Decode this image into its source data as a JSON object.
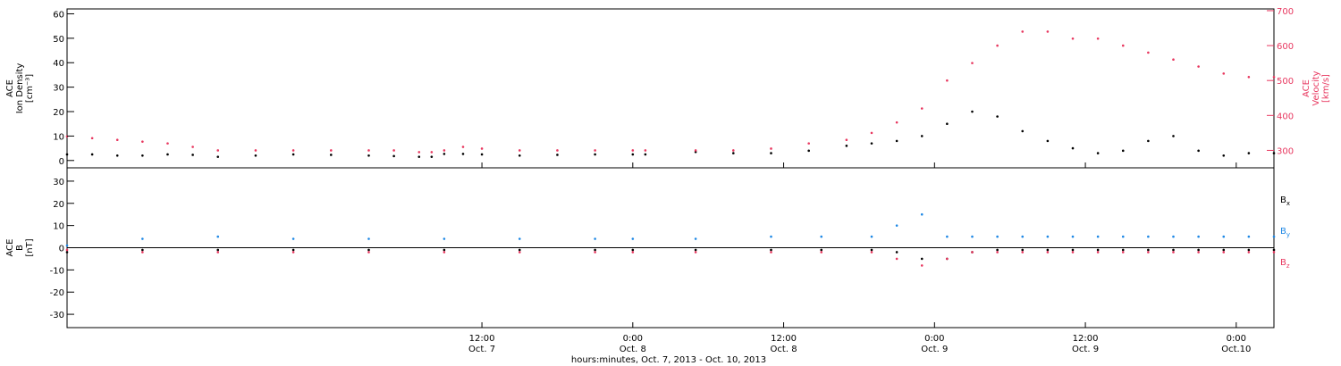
{
  "chart_data": {
    "type": "scatter",
    "x_axis": {
      "label": "hours:minutes, Oct.  7, 2013 - Oct. 10, 2013",
      "range_hours": [
        0,
        96
      ],
      "ticks": [
        {
          "hour": 33,
          "time": "12:00",
          "day": "Oct. 7"
        },
        {
          "hour": 45,
          "time": "0:00",
          "day": "Oct. 8"
        },
        {
          "hour": 57,
          "time": "12:00",
          "day": "Oct. 8"
        },
        {
          "hour": 69,
          "time": "0:00",
          "day": "Oct. 9"
        },
        {
          "hour": 81,
          "time": "12:00",
          "day": "Oct. 9"
        },
        {
          "hour": 93,
          "time": "0:00",
          "day": "Oct.10"
        }
      ]
    },
    "panels": [
      {
        "id": "density-velocity",
        "left_axis": {
          "label_lines": [
            "ACE",
            "Ion Density",
            "[cm⁻³]"
          ],
          "range": [
            -3,
            62
          ],
          "ticks": [
            0,
            10,
            20,
            30,
            40,
            50,
            60
          ],
          "color": "#000000"
        },
        "right_axis": {
          "label_lines": [
            "ACE",
            "Velocity",
            "[km/s]"
          ],
          "range": [
            250,
            705
          ],
          "ticks": [
            300,
            400,
            500,
            600,
            700
          ],
          "color": "#e8375f"
        },
        "series": [
          {
            "name": "Ion Density",
            "axis": "left",
            "color": "#000000",
            "points": [
              [
                0,
                2.5
              ],
              [
                2,
                2.5
              ],
              [
                4,
                2.0
              ],
              [
                6,
                2.0
              ],
              [
                8,
                2.5
              ],
              [
                10,
                2.3
              ],
              [
                12,
                1.5
              ],
              [
                15,
                2.0
              ],
              [
                18,
                2.5
              ],
              [
                21,
                2.3
              ],
              [
                24,
                2.0
              ],
              [
                26,
                1.8
              ],
              [
                28,
                1.5
              ],
              [
                29,
                1.5
              ],
              [
                30,
                2.7
              ],
              [
                31.5,
                2.7
              ],
              [
                33,
                2.5
              ],
              [
                36,
                2.0
              ],
              [
                39,
                2.3
              ],
              [
                42,
                2.5
              ],
              [
                45,
                2.5
              ],
              [
                46,
                2.5
              ],
              [
                50,
                3.5
              ],
              [
                53,
                3.0
              ],
              [
                56,
                3.0
              ],
              [
                59,
                4.0
              ],
              [
                62,
                6.0
              ],
              [
                64,
                7.0
              ],
              [
                66,
                8.0
              ],
              [
                68,
                10.0
              ],
              [
                70,
                15.0
              ],
              [
                72,
                20.0
              ],
              [
                74,
                18.0
              ],
              [
                76,
                12.0
              ],
              [
                78,
                8.0
              ],
              [
                80,
                5.0
              ],
              [
                82,
                3.0
              ],
              [
                84,
                4.0
              ],
              [
                86,
                8.0
              ],
              [
                88,
                10.0
              ],
              [
                90,
                4.0
              ],
              [
                92,
                2.0
              ],
              [
                94,
                3.0
              ],
              [
                96,
                3.0
              ]
            ]
          },
          {
            "name": "Velocity",
            "axis": "right",
            "color": "#e8375f",
            "points": [
              [
                0,
                340
              ],
              [
                2,
                335
              ],
              [
                4,
                330
              ],
              [
                6,
                325
              ],
              [
                8,
                320
              ],
              [
                10,
                310
              ],
              [
                12,
                300
              ],
              [
                15,
                300
              ],
              [
                18,
                300
              ],
              [
                21,
                300
              ],
              [
                24,
                300
              ],
              [
                26,
                300
              ],
              [
                28,
                295
              ],
              [
                29,
                295
              ],
              [
                30,
                300
              ],
              [
                31.5,
                310
              ],
              [
                33,
                305
              ],
              [
                36,
                300
              ],
              [
                39,
                300
              ],
              [
                42,
                300
              ],
              [
                45,
                300
              ],
              [
                46,
                300
              ],
              [
                50,
                300
              ],
              [
                53,
                300
              ],
              [
                56,
                305
              ],
              [
                59,
                320
              ],
              [
                62,
                330
              ],
              [
                64,
                350
              ],
              [
                66,
                380
              ],
              [
                68,
                420
              ],
              [
                70,
                500
              ],
              [
                72,
                550
              ],
              [
                74,
                600
              ],
              [
                76,
                640
              ],
              [
                78,
                640
              ],
              [
                80,
                620
              ],
              [
                82,
                620
              ],
              [
                84,
                600
              ],
              [
                86,
                580
              ],
              [
                88,
                560
              ],
              [
                90,
                540
              ],
              [
                92,
                520
              ],
              [
                94,
                510
              ],
              [
                96,
                510
              ]
            ]
          }
        ]
      },
      {
        "id": "magnetic-field",
        "left_axis": {
          "label_lines": [
            "ACE",
            "B",
            "[nT]"
          ],
          "range": [
            -36,
            36
          ],
          "ticks": [
            -30,
            -20,
            -10,
            0,
            10,
            20,
            30
          ],
          "color": "#000000"
        },
        "legend_placement": "right",
        "series": [
          {
            "name": "B",
            "sub": "x",
            "color": "#000000",
            "points": [
              [
                0,
                -2
              ],
              [
                6,
                -1
              ],
              [
                12,
                -1
              ],
              [
                18,
                -1
              ],
              [
                24,
                -1
              ],
              [
                30,
                -1
              ],
              [
                36,
                -1
              ],
              [
                42,
                -1
              ],
              [
                45,
                -1
              ],
              [
                50,
                -1
              ],
              [
                56,
                -1
              ],
              [
                60,
                -1
              ],
              [
                64,
                -1
              ],
              [
                66,
                -2
              ],
              [
                68,
                -5
              ],
              [
                70,
                -5
              ],
              [
                72,
                -2
              ],
              [
                74,
                -1
              ],
              [
                76,
                -1
              ],
              [
                78,
                -1
              ],
              [
                80,
                -1
              ],
              [
                82,
                -1
              ],
              [
                84,
                -1
              ],
              [
                86,
                -1
              ],
              [
                88,
                -1
              ],
              [
                90,
                -1
              ],
              [
                92,
                -1
              ],
              [
                94,
                -1
              ],
              [
                96,
                -1
              ]
            ]
          },
          {
            "name": "B",
            "sub": "y",
            "color": "#1e88e5",
            "points": [
              [
                0,
                1
              ],
              [
                6,
                4
              ],
              [
                12,
                5
              ],
              [
                18,
                4
              ],
              [
                24,
                4
              ],
              [
                30,
                4
              ],
              [
                36,
                4
              ],
              [
                42,
                4
              ],
              [
                45,
                4
              ],
              [
                50,
                4
              ],
              [
                56,
                5
              ],
              [
                60,
                5
              ],
              [
                64,
                5
              ],
              [
                66,
                10
              ],
              [
                68,
                15
              ],
              [
                70,
                5
              ],
              [
                72,
                5
              ],
              [
                74,
                5
              ],
              [
                76,
                5
              ],
              [
                78,
                5
              ],
              [
                80,
                5
              ],
              [
                82,
                5
              ],
              [
                84,
                5
              ],
              [
                86,
                5
              ],
              [
                88,
                5
              ],
              [
                90,
                5
              ],
              [
                92,
                5
              ],
              [
                94,
                5
              ],
              [
                96,
                5
              ]
            ]
          },
          {
            "name": "B",
            "sub": "z",
            "color": "#e8375f",
            "points": [
              [
                0,
                -1
              ],
              [
                6,
                -2
              ],
              [
                12,
                -2
              ],
              [
                18,
                -2
              ],
              [
                24,
                -2
              ],
              [
                30,
                -2
              ],
              [
                36,
                -2
              ],
              [
                42,
                -2
              ],
              [
                45,
                -2
              ],
              [
                50,
                -2
              ],
              [
                56,
                -2
              ],
              [
                60,
                -2
              ],
              [
                64,
                -2
              ],
              [
                66,
                -5
              ],
              [
                68,
                -8
              ],
              [
                70,
                -5
              ],
              [
                72,
                -2
              ],
              [
                74,
                -2
              ],
              [
                76,
                -2
              ],
              [
                78,
                -2
              ],
              [
                80,
                -2
              ],
              [
                82,
                -2
              ],
              [
                84,
                -2
              ],
              [
                86,
                -2
              ],
              [
                88,
                -2
              ],
              [
                90,
                -2
              ],
              [
                92,
                -2
              ],
              [
                94,
                -2
              ],
              [
                96,
                -2
              ]
            ]
          }
        ]
      }
    ]
  }
}
